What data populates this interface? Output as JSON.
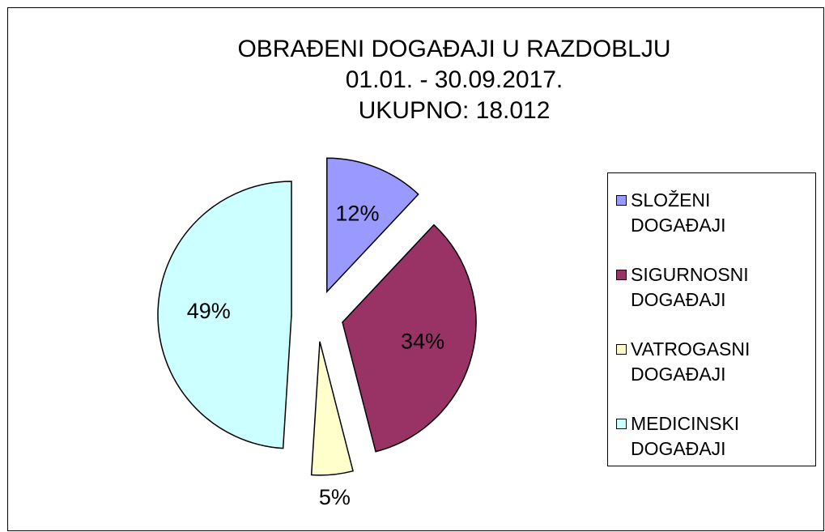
{
  "chart_data": {
    "type": "pie",
    "title": "OBRAĐENI DOGAĐAJI U RAZDOBLJU",
    "subtitle": "01.01. -  30.09.2017.",
    "total": "UKUPNO: 18.012",
    "categories": [
      "SLOŽENI DOGAĐAJI",
      "SIGURNOSNI DOGAĐAJI",
      "VATROGASNI DOGAĐAJI",
      "MEDICINSKI DOGAĐAJI"
    ],
    "values": [
      12,
      34,
      5,
      49
    ],
    "value_labels": [
      "12%",
      "34%",
      "5%",
      "49%"
    ],
    "colors": [
      "#9999ff",
      "#993366",
      "#ffffcc",
      "#ccffff"
    ],
    "legend": "right"
  }
}
